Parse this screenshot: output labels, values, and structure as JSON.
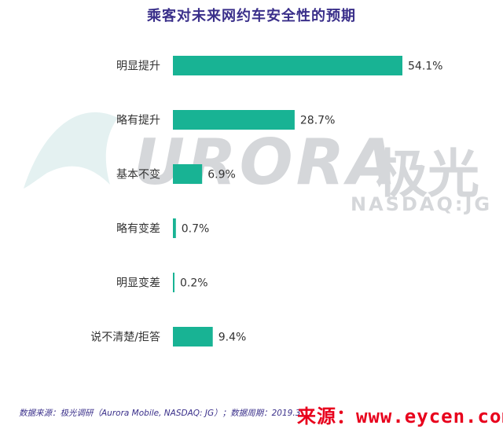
{
  "colors": {
    "title": "#3a2f8a",
    "bar": "#18b394",
    "label": "#333333",
    "value": "#333333",
    "footer": "#3a2f8a",
    "watermark": "#d5d7da",
    "watermark_shape": "#e4f1f1",
    "source_stamp": "#e8001c"
  },
  "watermark": {
    "logo_text": "URORA",
    "logo_cn": "极光",
    "sub": "NASDAQ:JG"
  },
  "footer": {
    "source": "数据来源：极光调研（Aurora Mobile, NASDAQ: JG）；数据周期：2019.3"
  },
  "stamp": {
    "text": "来源：www.eycen.com"
  },
  "chart_data": {
    "type": "bar",
    "orientation": "horizontal",
    "title": "乘客对未来网约车安全性的预期",
    "categories": [
      "明显提升",
      "略有提升",
      "基本不变",
      "略有变差",
      "明显变差",
      "说不清楚/拒答"
    ],
    "values": [
      54.1,
      28.7,
      6.9,
      0.7,
      0.2,
      9.4
    ],
    "value_labels": [
      "54.1%",
      "28.7%",
      "6.9%",
      "0.7%",
      "0.2%",
      "9.4%"
    ],
    "unit": "%",
    "xlim": [
      0,
      54.1
    ],
    "grid": false,
    "legend": "none"
  }
}
